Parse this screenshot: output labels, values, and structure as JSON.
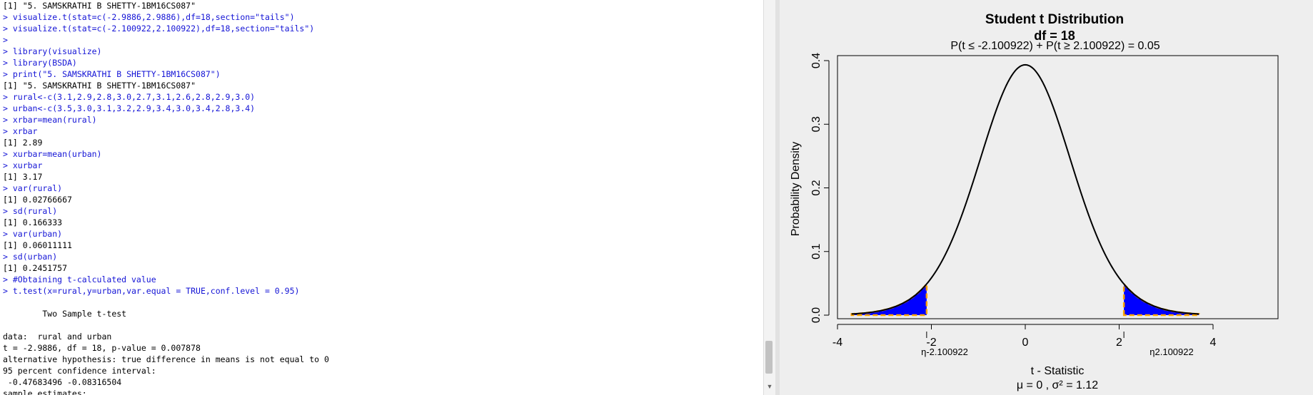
{
  "console": {
    "lines": [
      {
        "t": "out",
        "s": "[1] \"5. SAMSKRATHI B SHETTY-1BM16CS087\""
      },
      {
        "t": "cmd",
        "s": "> visualize.t(stat=c(-2.9886,2.9886),df=18,section=\"tails\")"
      },
      {
        "t": "cmd",
        "s": "> visualize.t(stat=c(-2.100922,2.100922),df=18,section=\"tails\")"
      },
      {
        "t": "cmd",
        "s": ">"
      },
      {
        "t": "cmd",
        "s": "> library(visualize)"
      },
      {
        "t": "cmd",
        "s": "> library(BSDA)"
      },
      {
        "t": "cmd",
        "s": "> print(\"5. SAMSKRATHI B SHETTY-1BM16CS087\")"
      },
      {
        "t": "out",
        "s": "[1] \"5. SAMSKRATHI B SHETTY-1BM16CS087\""
      },
      {
        "t": "cmd",
        "s": "> rural<-c(3.1,2.9,2.8,3.0,2.7,3.1,2.6,2.8,2.9,3.0)"
      },
      {
        "t": "cmd",
        "s": "> urban<-c(3.5,3.0,3.1,3.2,2.9,3.4,3.0,3.4,2.8,3.4)"
      },
      {
        "t": "cmd",
        "s": "> xrbar=mean(rural)"
      },
      {
        "t": "cmd",
        "s": "> xrbar"
      },
      {
        "t": "out",
        "s": "[1] 2.89"
      },
      {
        "t": "cmd",
        "s": "> xurbar=mean(urban)"
      },
      {
        "t": "cmd",
        "s": "> xurbar"
      },
      {
        "t": "out",
        "s": "[1] 3.17"
      },
      {
        "t": "cmd",
        "s": "> var(rural)"
      },
      {
        "t": "out",
        "s": "[1] 0.02766667"
      },
      {
        "t": "cmd",
        "s": "> sd(rural)"
      },
      {
        "t": "out",
        "s": "[1] 0.166333"
      },
      {
        "t": "cmd",
        "s": "> var(urban)"
      },
      {
        "t": "out",
        "s": "[1] 0.06011111"
      },
      {
        "t": "cmd",
        "s": "> sd(urban)"
      },
      {
        "t": "out",
        "s": "[1] 0.2451757"
      },
      {
        "t": "cmd",
        "s": "> #Obtaining t-calculated value"
      },
      {
        "t": "cmd",
        "s": "> t.test(x=rural,y=urban,var.equal = TRUE,conf.level = 0.95)"
      },
      {
        "t": "out",
        "s": ""
      },
      {
        "t": "out",
        "s": "        Two Sample t-test"
      },
      {
        "t": "out",
        "s": ""
      },
      {
        "t": "out",
        "s": "data:  rural and urban"
      },
      {
        "t": "out",
        "s": "t = -2.9886, df = 18, p-value = 0.007878"
      },
      {
        "t": "out",
        "s": "alternative hypothesis: true difference in means is not equal to 0"
      },
      {
        "t": "out",
        "s": "95 percent confidence interval:"
      },
      {
        "t": "out",
        "s": " -0.47683496 -0.08316504"
      },
      {
        "t": "out",
        "s": "sample estimates:"
      }
    ]
  },
  "plot": {
    "title": "Student t Distribution",
    "subtitle": "df  =  18",
    "probability_label": "P(t ≤ -2.100922) + P(t ≥ 2.100922) = 0.05",
    "ylabel": "Probability Density",
    "xlabel": "t - Statistic",
    "footer": "μ =  0 , σ² =  1.12",
    "left_cut_label": "η-2.100922",
    "right_cut_label": "η2.100922",
    "colors": {
      "fill": "#0000ff",
      "border": "#ffa500",
      "curve": "#000000"
    }
  },
  "chart_data": {
    "type": "line",
    "title": "Student t Distribution",
    "subtitle": "df  =  18",
    "distribution": "t",
    "df": 18,
    "xlabel": "t - Statistic",
    "ylabel": "Probability Density",
    "xlim": [
      -4,
      4
    ],
    "ylim": [
      0,
      0.4
    ],
    "x_ticks": [
      -4,
      -2,
      0,
      2,
      4
    ],
    "y_ticks": [
      0.0,
      0.1,
      0.2,
      0.3,
      0.4
    ],
    "shaded_tails": [
      [
        -3.7,
        -2.100922
      ],
      [
        2.100922,
        3.7
      ]
    ],
    "critical_values": [
      -2.100922,
      2.100922
    ],
    "total_tail_probability": 0.05
  }
}
